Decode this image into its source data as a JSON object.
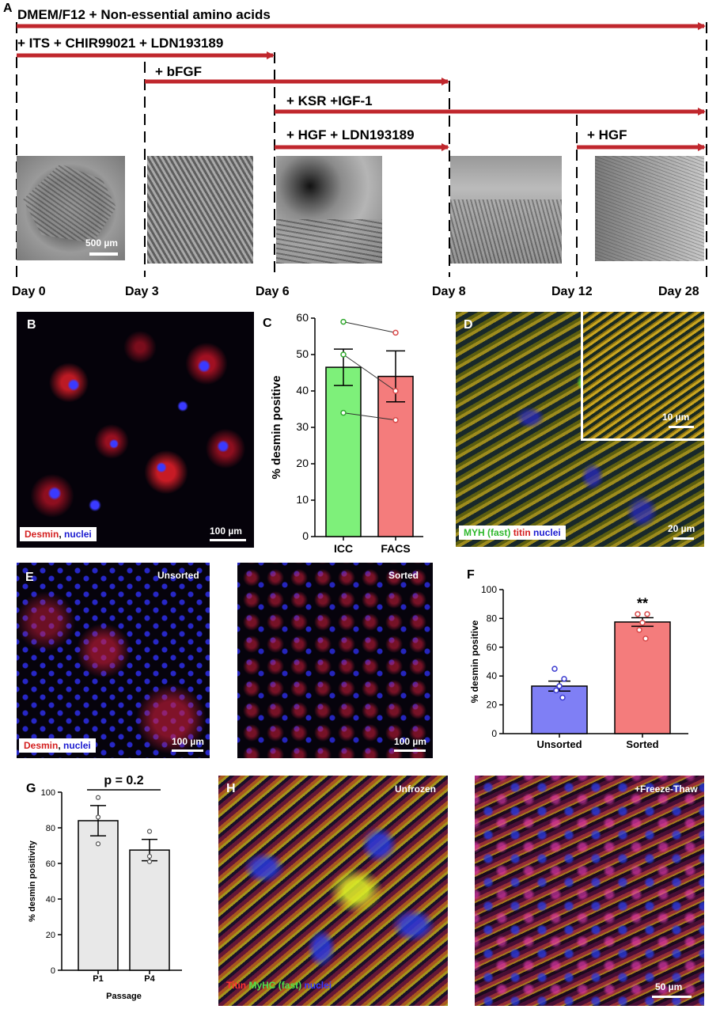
{
  "panelA": {
    "label": "A",
    "arrows": [
      {
        "text": "DMEM/F12 + Non-essential amino acids"
      },
      {
        "text": "+ ITS + CHIR99021 + LDN193189"
      },
      {
        "text": "+ bFGF"
      },
      {
        "text": "+ KSR +IGF-1"
      },
      {
        "text": "+ HGF + LDN193189"
      },
      {
        "text": "+ HGF"
      }
    ],
    "days": [
      "Day 0",
      "Day 3",
      "Day 6",
      "Day 8",
      "Day 12",
      "Day 28"
    ],
    "scalebar": "500 µm",
    "arrow_color": "#c0272d"
  },
  "panelB": {
    "label": "B",
    "legend_a": "Desmin",
    "legend_sep": ",",
    "legend_b": " nuclei",
    "scalebar": "100 µm"
  },
  "panelC": {
    "label": "C",
    "chart_data": {
      "type": "bar",
      "categories": [
        "ICC",
        "FACS"
      ],
      "values": [
        46.5,
        44
      ],
      "errors": [
        5,
        7
      ],
      "ylabel": "% desmin positive",
      "ylim": [
        0,
        60
      ],
      "yticks": [
        0,
        10,
        20,
        30,
        40,
        50,
        60
      ],
      "paired_points": [
        [
          59,
          56
        ],
        [
          50,
          40
        ],
        [
          34,
          32
        ]
      ],
      "colors": [
        "#7ef07a",
        "#f47c7c"
      ],
      "point_colors": [
        "#2fa82c",
        "#d94a4a"
      ]
    }
  },
  "panelD": {
    "label": "D",
    "legend_a": "MYH (fast)",
    "legend_b": "titin",
    "legend_c": "nuclei",
    "scalebar": "20 µm",
    "inset_scalebar": "10 µm"
  },
  "panelE": {
    "label": "E",
    "left_title": "Unsorted",
    "right_title": "Sorted",
    "legend_a": "Desmin",
    "legend_sep": ",",
    "legend_b": " nuclei",
    "scalebar_left": "100 µm",
    "scalebar_right": "100 µm"
  },
  "panelF": {
    "label": "F",
    "chart_data": {
      "type": "bar",
      "categories": [
        "Unsorted",
        "Sorted"
      ],
      "values": [
        33,
        77.5
      ],
      "errors": [
        3.5,
        3
      ],
      "ylabel": "% desmin positive",
      "ylim": [
        0,
        100
      ],
      "yticks": [
        0,
        20,
        40,
        60,
        80,
        100
      ],
      "points": [
        [
          45,
          38,
          33,
          30,
          25
        ],
        [
          83,
          83,
          77,
          72,
          66
        ]
      ],
      "significance": "**",
      "colors": [
        "#7f7ff5",
        "#f47c7c"
      ],
      "point_colors": [
        "#3a3ad0",
        "#d94a4a"
      ]
    }
  },
  "panelG": {
    "label": "G",
    "chart_data": {
      "type": "bar",
      "categories": [
        "P1",
        "P4"
      ],
      "values": [
        84,
        67.5
      ],
      "errors": [
        8.5,
        6
      ],
      "xlabel": "Passage",
      "ylabel": "% desmin positivity",
      "ylim": [
        0,
        100
      ],
      "yticks": [
        0,
        20,
        40,
        60,
        80,
        100
      ],
      "points": [
        [
          97,
          86,
          71
        ],
        [
          78,
          64,
          61
        ]
      ],
      "significance": "p = 0.2",
      "colors": [
        "#e8e8e8",
        "#e8e8e8"
      ],
      "point_colors": [
        "#555555",
        "#555555"
      ]
    }
  },
  "panelH": {
    "label": "H",
    "left_title": "Unfrozen",
    "right_title": "+Freeze-Thaw",
    "legend_a": "Titin",
    "legend_b": "MyHC (fast)",
    "legend_c": "nuclei",
    "scalebar": "50 µm"
  }
}
